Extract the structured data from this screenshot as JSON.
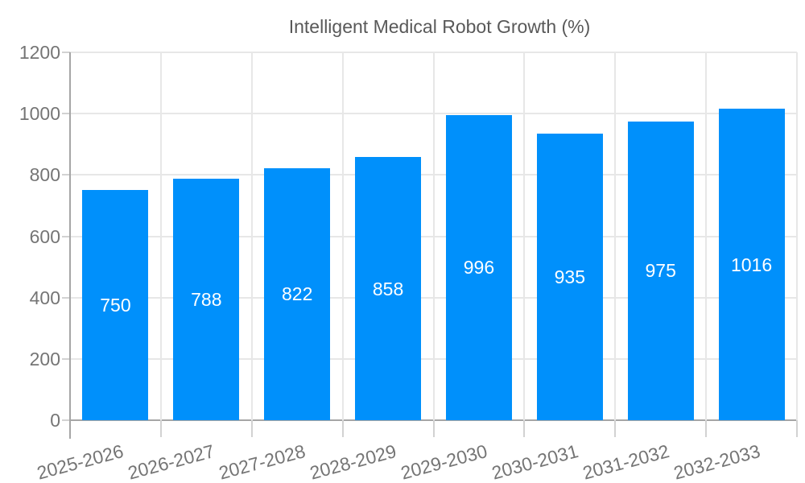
{
  "chart_data": {
    "type": "bar",
    "title": "Intelligent Medical Robot Growth (%)",
    "legend": [
      "Intelligent Medical Robot Growth (%)"
    ],
    "legend_position": "top",
    "categories": [
      "2025-2026",
      "2026-2027",
      "2027-2028",
      "2028-2029",
      "2029-2030",
      "2030-2031",
      "2031-2032",
      "2032-2033"
    ],
    "series": [
      {
        "name": "Intelligent Medical Robot Growth (%)",
        "values": [
          750,
          788,
          822,
          858,
          996,
          935,
          975,
          1016
        ]
      }
    ],
    "xlabel": "",
    "ylabel": "",
    "ylim": [
      0,
      1200
    ],
    "ytick_step": 200,
    "yticks": [
      0,
      200,
      400,
      600,
      800,
      1000,
      1200
    ],
    "grid": true,
    "value_labels": "inside-center",
    "x_label_rotation_deg": -15,
    "colors": {
      "bar": "#0090fb",
      "grid": "#e7e7e7",
      "axis": "#a6a6a6",
      "tick": "#d2d2d2",
      "axis_text": "#757575",
      "legend_text": "#595959",
      "value_text": "#ffffff",
      "background": "#ffffff"
    }
  }
}
